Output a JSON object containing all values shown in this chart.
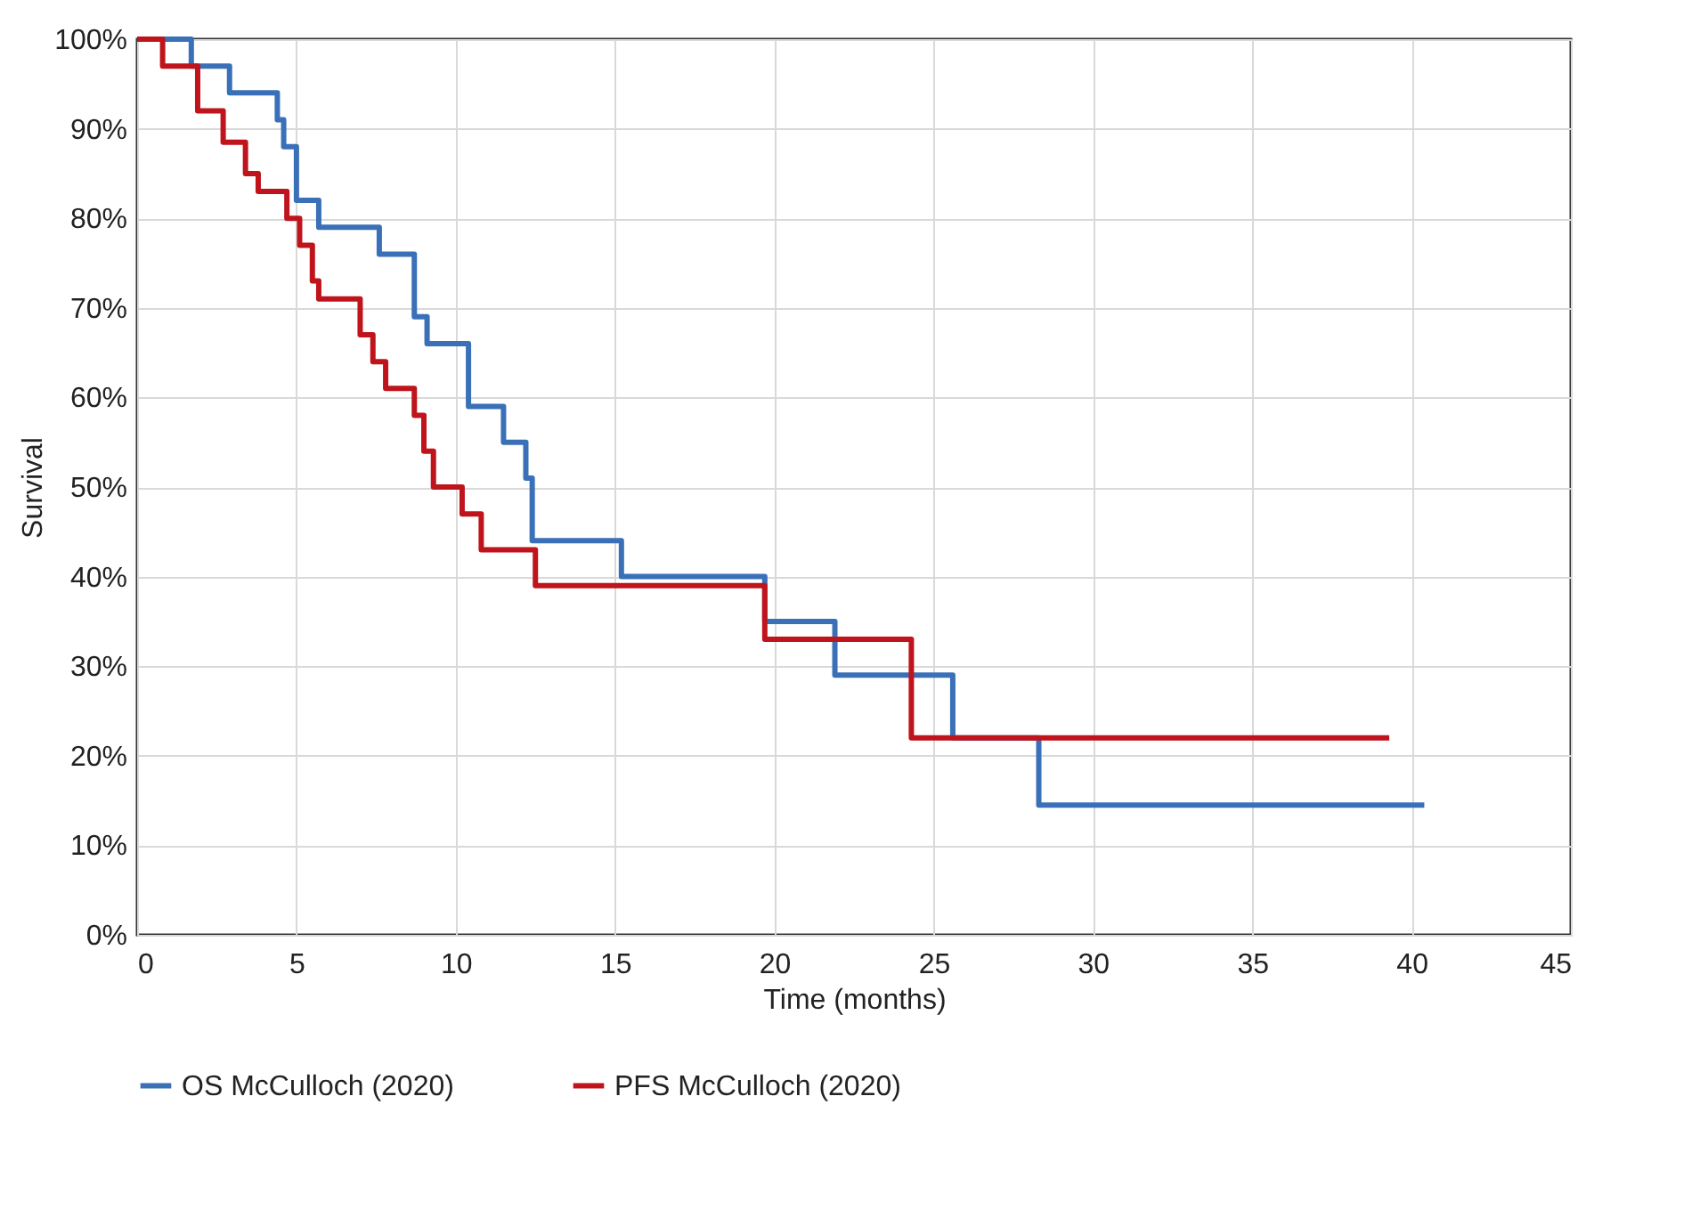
{
  "chart_data": {
    "type": "step",
    "xlabel": "Time (months)",
    "ylabel": "Survival",
    "xlim": [
      0,
      45
    ],
    "xticks": [
      0,
      5,
      10,
      15,
      20,
      25,
      30,
      35,
      40,
      45
    ],
    "ylim": [
      0,
      100
    ],
    "yticks": [
      {
        "value": 0,
        "label": "0%"
      },
      {
        "value": 10,
        "label": "10%"
      },
      {
        "value": 20,
        "label": "20%"
      },
      {
        "value": 30,
        "label": "30%"
      },
      {
        "value": 40,
        "label": "40%"
      },
      {
        "value": 50,
        "label": "50%"
      },
      {
        "value": 60,
        "label": "60%"
      },
      {
        "value": 70,
        "label": "70%"
      },
      {
        "value": 80,
        "label": "80%"
      },
      {
        "value": 90,
        "label": "90%"
      },
      {
        "value": 100,
        "label": "100%"
      }
    ],
    "grid": true,
    "legend": "bottom",
    "marker": "none",
    "line_style": "solid",
    "series": [
      {
        "name": "OS McCulloch (2020)",
        "color": "#3a70b8",
        "x": [
          0,
          1.7,
          2.9,
          4.4,
          4.6,
          5.0,
          5.7,
          7.6,
          8.7,
          9.1,
          10.4,
          11.5,
          12.2,
          12.4,
          15.2,
          19.7,
          21.9,
          25.6,
          28.3,
          40.4
        ],
        "values": [
          100,
          97,
          94,
          91,
          88,
          82,
          79,
          76,
          69,
          66,
          59,
          55,
          51,
          44,
          40,
          35,
          29,
          22,
          14.5,
          14.5
        ]
      },
      {
        "name": "PFS McCulloch (2020)",
        "color": "#c0141c",
        "x": [
          0,
          0.8,
          1.9,
          2.7,
          3.4,
          3.8,
          4.7,
          5.1,
          5.5,
          5.7,
          7.0,
          7.4,
          7.8,
          8.7,
          9.0,
          9.3,
          10.2,
          10.8,
          12.5,
          19.7,
          24.3,
          39.3
        ],
        "values": [
          100,
          97,
          92,
          88.5,
          85,
          83,
          80,
          77,
          73,
          71,
          67,
          64,
          61,
          58,
          54,
          50,
          47,
          43,
          39,
          33,
          22,
          22
        ]
      }
    ]
  }
}
